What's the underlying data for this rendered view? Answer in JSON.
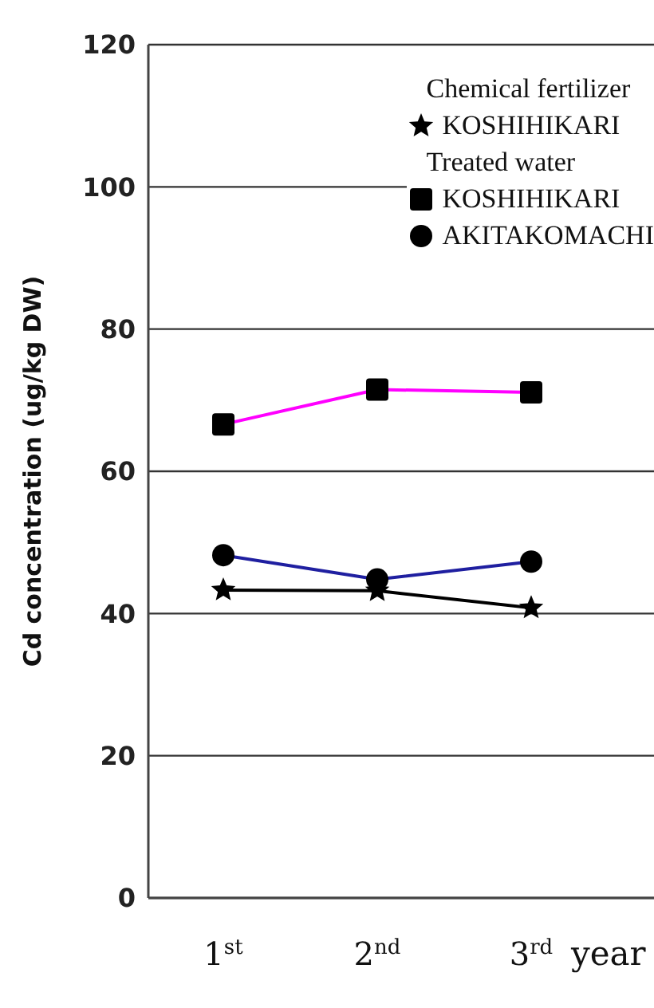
{
  "chart_data": {
    "type": "line",
    "ylabel": "Cd concentration (ug/kg DW)",
    "xlabel": "year",
    "categories": [
      "1$^{st}$",
      "2$^{nd}$",
      "3$^{rd}$"
    ],
    "series": [
      {
        "name": "KOSHIHIKARI",
        "color": "#000000",
        "marker": "star",
        "values": [
          43.3,
          43.2,
          40.8
        ]
      },
      {
        "name": "KOSHIHIKARI",
        "color": "#ff00ff",
        "marker": "square",
        "values": [
          66.6,
          71.5,
          71.1
        ]
      },
      {
        "name": "AKITAKOMACHI",
        "color": "#1f1fa0",
        "marker": "circle",
        "values": [
          48.2,
          44.8,
          47.3
        ]
      }
    ],
    "annotations": [
      "Chemical fertilizer",
      "Treated water"
    ],
    "ylim": [
      0,
      120
    ],
    "yticks": [
      0,
      20,
      40,
      60,
      80,
      100,
      120
    ],
    "grid": "y",
    "legend": "top right"
  }
}
